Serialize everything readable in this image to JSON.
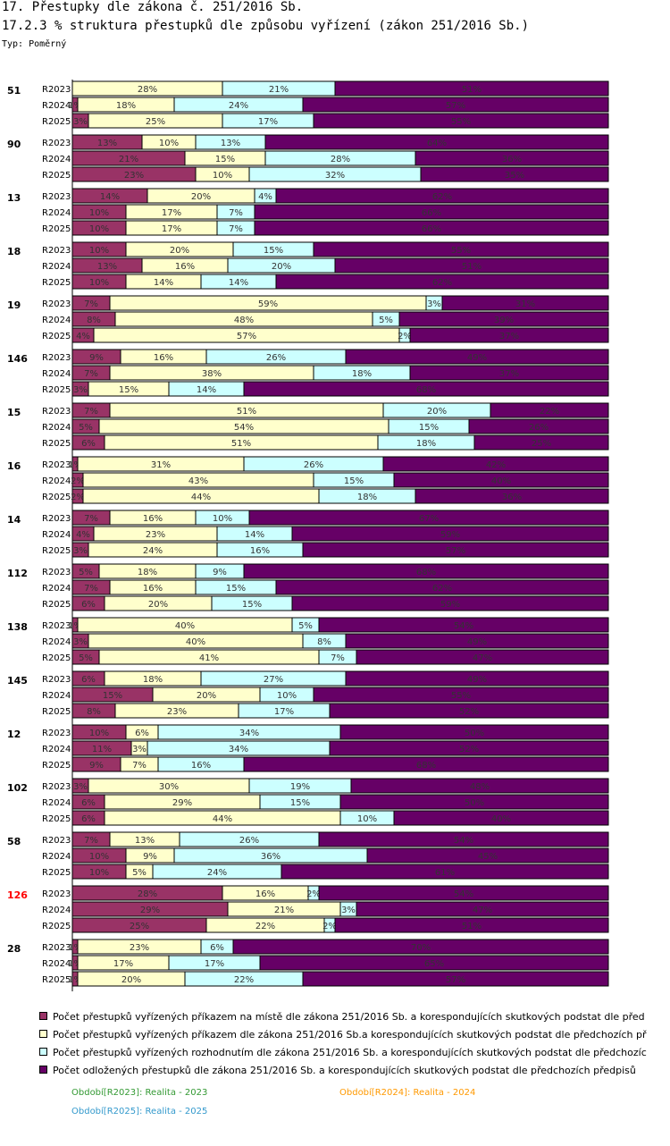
{
  "header": {
    "title": "17. Přestupky dle zákona č. 251/2016 Sb.",
    "subtitle": "17.2.3 % struktura přestupků dle způsobu vyřízení (zákon 251/2016 Sb.)",
    "type_label": "Typ: Poměrný"
  },
  "colors": {
    "series": [
      "#993366",
      "#ffffcc",
      "#ccffff",
      "#660066"
    ],
    "label_text": "#333333",
    "highlight_group": "#ff0000",
    "period_2023": "#339933",
    "period_2024": "#ff9900",
    "period_2025": "#3399cc"
  },
  "chart_data": {
    "type": "bar",
    "orientation": "horizontal",
    "stacked": true,
    "normalized_percent": true,
    "title": "17.2.3 % struktura přestupků dle způsobu vyřízení (zákon 251/2016 Sb.)",
    "xlim": [
      0,
      100
    ],
    "series_names": [
      "Počet přestupků vyřízených příkazem na místě dle zákona 251/2016 Sb. a korespondujících skutkových podstat dle před",
      "Počet přestupků vyřízených příkazem dle zákona 251/2016 Sb.a korespondujících skutkových podstat dle předchozích př",
      "Počet přestupků vyřízených rozhodnutím dle zákona 251/2016 Sb. a korespondujících skutkových podstat dle předchozíc",
      "Počet odložených přestupků dle zákona 251/2016 Sb. a korespondujících skutkových podstat dle předchozích předpisů"
    ],
    "groups": [
      {
        "label": "51",
        "highlight": false,
        "rows": [
          {
            "period": "R2023",
            "values": [
              0,
              28,
              21,
              51
            ]
          },
          {
            "period": "R2024",
            "values": [
              1,
              18,
              24,
              57
            ]
          },
          {
            "period": "R2025",
            "values": [
              3,
              25,
              17,
              55
            ]
          }
        ]
      },
      {
        "label": "90",
        "highlight": false,
        "rows": [
          {
            "period": "R2023",
            "values": [
              13,
              10,
              13,
              64
            ]
          },
          {
            "period": "R2024",
            "values": [
              21,
              15,
              28,
              36
            ]
          },
          {
            "period": "R2025",
            "values": [
              23,
              10,
              32,
              35
            ]
          }
        ]
      },
      {
        "label": "13",
        "highlight": false,
        "rows": [
          {
            "period": "R2023",
            "values": [
              14,
              20,
              4,
              62
            ]
          },
          {
            "period": "R2024",
            "values": [
              10,
              17,
              7,
              66
            ]
          },
          {
            "period": "R2025",
            "values": [
              10,
              17,
              7,
              66
            ]
          }
        ]
      },
      {
        "label": "18",
        "highlight": false,
        "rows": [
          {
            "period": "R2023",
            "values": [
              10,
              20,
              15,
              55
            ]
          },
          {
            "period": "R2024",
            "values": [
              13,
              16,
              20,
              51
            ]
          },
          {
            "period": "R2025",
            "values": [
              10,
              14,
              14,
              62
            ]
          }
        ]
      },
      {
        "label": "19",
        "highlight": false,
        "rows": [
          {
            "period": "R2023",
            "values": [
              7,
              59,
              3,
              31
            ]
          },
          {
            "period": "R2024",
            "values": [
              8,
              48,
              5,
              39
            ]
          },
          {
            "period": "R2025",
            "values": [
              4,
              57,
              2,
              37
            ]
          }
        ]
      },
      {
        "label": "146",
        "highlight": false,
        "rows": [
          {
            "period": "R2023",
            "values": [
              9,
              16,
              26,
              49
            ]
          },
          {
            "period": "R2024",
            "values": [
              7,
              38,
              18,
              37
            ]
          },
          {
            "period": "R2025",
            "values": [
              3,
              15,
              14,
              68
            ]
          }
        ]
      },
      {
        "label": "15",
        "highlight": false,
        "rows": [
          {
            "period": "R2023",
            "values": [
              7,
              51,
              20,
              22
            ]
          },
          {
            "period": "R2024",
            "values": [
              5,
              54,
              15,
              26
            ]
          },
          {
            "period": "R2025",
            "values": [
              6,
              51,
              18,
              25
            ]
          }
        ]
      },
      {
        "label": "16",
        "highlight": false,
        "rows": [
          {
            "period": "R2023",
            "values": [
              1,
              31,
              26,
              42
            ]
          },
          {
            "period": "R2024",
            "values": [
              2,
              43,
              15,
              40
            ]
          },
          {
            "period": "R2025",
            "values": [
              2,
              44,
              18,
              36
            ]
          }
        ]
      },
      {
        "label": "14",
        "highlight": false,
        "rows": [
          {
            "period": "R2023",
            "values": [
              7,
              16,
              10,
              67
            ]
          },
          {
            "period": "R2024",
            "values": [
              4,
              23,
              14,
              59
            ]
          },
          {
            "period": "R2025",
            "values": [
              3,
              24,
              16,
              57
            ]
          }
        ]
      },
      {
        "label": "112",
        "highlight": false,
        "rows": [
          {
            "period": "R2023",
            "values": [
              5,
              18,
              9,
              68
            ]
          },
          {
            "period": "R2024",
            "values": [
              7,
              16,
              15,
              62
            ]
          },
          {
            "period": "R2025",
            "values": [
              6,
              20,
              15,
              59
            ]
          }
        ]
      },
      {
        "label": "138",
        "highlight": false,
        "rows": [
          {
            "period": "R2023",
            "values": [
              1,
              40,
              5,
              54
            ]
          },
          {
            "period": "R2024",
            "values": [
              3,
              40,
              8,
              49
            ]
          },
          {
            "period": "R2025",
            "values": [
              5,
              41,
              7,
              47
            ]
          }
        ]
      },
      {
        "label": "145",
        "highlight": false,
        "rows": [
          {
            "period": "R2023",
            "values": [
              6,
              18,
              27,
              49
            ]
          },
          {
            "period": "R2024",
            "values": [
              15,
              20,
              10,
              55
            ]
          },
          {
            "period": "R2025",
            "values": [
              8,
              23,
              17,
              52
            ]
          }
        ]
      },
      {
        "label": "12",
        "highlight": false,
        "rows": [
          {
            "period": "R2023",
            "values": [
              10,
              6,
              34,
              50
            ]
          },
          {
            "period": "R2024",
            "values": [
              11,
              3,
              34,
              52
            ]
          },
          {
            "period": "R2025",
            "values": [
              9,
              7,
              16,
              68
            ]
          }
        ]
      },
      {
        "label": "102",
        "highlight": false,
        "rows": [
          {
            "period": "R2023",
            "values": [
              3,
              30,
              19,
              48
            ]
          },
          {
            "period": "R2024",
            "values": [
              6,
              29,
              15,
              50
            ]
          },
          {
            "period": "R2025",
            "values": [
              6,
              44,
              10,
              40
            ]
          }
        ]
      },
      {
        "label": "58",
        "highlight": false,
        "rows": [
          {
            "period": "R2023",
            "values": [
              7,
              13,
              26,
              54
            ]
          },
          {
            "period": "R2024",
            "values": [
              10,
              9,
              36,
              45
            ]
          },
          {
            "period": "R2025",
            "values": [
              10,
              5,
              24,
              61
            ]
          }
        ]
      },
      {
        "label": "126",
        "highlight": true,
        "rows": [
          {
            "period": "R2023",
            "values": [
              28,
              16,
              2,
              54
            ]
          },
          {
            "period": "R2024",
            "values": [
              29,
              21,
              3,
              47
            ]
          },
          {
            "period": "R2025",
            "values": [
              25,
              22,
              2,
              51
            ]
          }
        ]
      },
      {
        "label": "28",
        "highlight": false,
        "rows": [
          {
            "period": "R2023",
            "values": [
              1,
              23,
              6,
              70
            ]
          },
          {
            "period": "R2024",
            "values": [
              1,
              17,
              17,
              65
            ]
          },
          {
            "period": "R2025",
            "values": [
              1,
              20,
              22,
              57
            ]
          }
        ]
      }
    ]
  },
  "legend_items": [
    "Počet přestupků vyřízených příkazem na místě dle zákona 251/2016 Sb. a korespondujících skutkových podstat dle před",
    "Počet přestupků vyřízených příkazem dle zákona 251/2016 Sb.a korespondujících skutkových podstat dle předchozích př",
    "Počet přestupků vyřízených rozhodnutím dle zákona 251/2016 Sb. a korespondujících skutkových podstat dle předchozíc",
    "Počet odložených přestupků dle zákona 251/2016 Sb. a korespondujících skutkových podstat dle předchozích předpisů"
  ],
  "periods": {
    "p2023": "Období[R2023]: Realita - 2023",
    "p2024": "Období[R2024]: Realita - 2024",
    "p2025": "Období[R2025]: Realita - 2025"
  }
}
